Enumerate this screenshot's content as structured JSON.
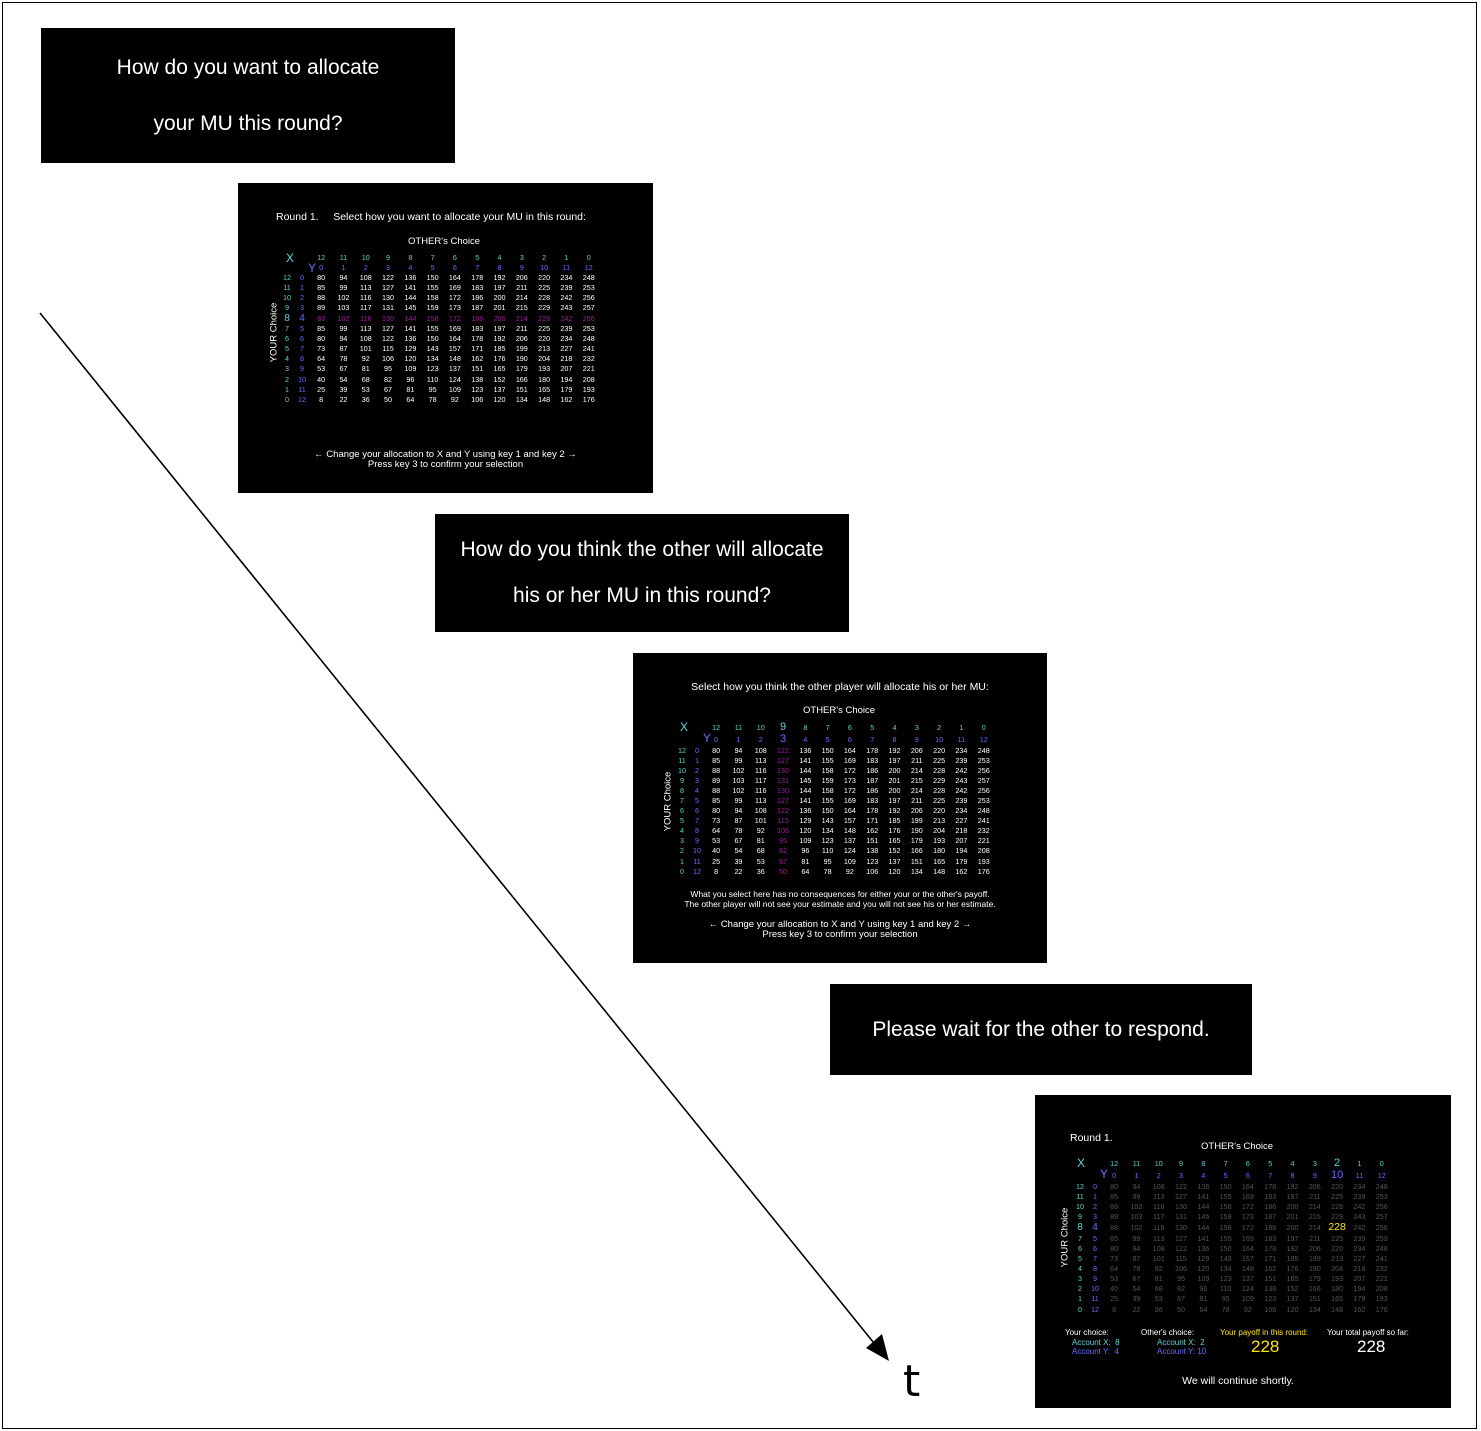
{
  "prompt1": {
    "line1": "How do you want to allocate",
    "line2": "your MU this round?"
  },
  "prompt2": {
    "line1": "How do you think the other will allocate",
    "line2": "his or her MU in this round?"
  },
  "prompt3": {
    "text": "Please wait for the other to respond."
  },
  "time_label": "t",
  "colors": {
    "panel": "#000000",
    "x_header": "#5fd3d3",
    "y_header": "#6a6cff",
    "highlight": "#9b1f9b",
    "payoff": "#ffe600",
    "dim": "#555555"
  },
  "matrix": {
    "other_x": [
      "12",
      "11",
      "10",
      "9",
      "8",
      "7",
      "6",
      "5",
      "4",
      "3",
      "2",
      "1",
      "0"
    ],
    "other_y": [
      "0",
      "1",
      "2",
      "3",
      "4",
      "5",
      "6",
      "7",
      "8",
      "9",
      "10",
      "11",
      "12"
    ],
    "your_x": [
      "12",
      "11",
      "10",
      "9",
      "8",
      "7",
      "6",
      "5",
      "4",
      "3",
      "2",
      "1",
      "0"
    ],
    "your_y": [
      "0",
      "1",
      "2",
      "3",
      "4",
      "5",
      "6",
      "7",
      "8",
      "9",
      "10",
      "11",
      "12"
    ],
    "rows": [
      [
        "80",
        "94",
        "108",
        "122",
        "136",
        "150",
        "164",
        "178",
        "192",
        "206",
        "220",
        "234",
        "248"
      ],
      [
        "85",
        "99",
        "113",
        "127",
        "141",
        "155",
        "169",
        "183",
        "197",
        "211",
        "225",
        "239",
        "253"
      ],
      [
        "88",
        "102",
        "116",
        "130",
        "144",
        "158",
        "172",
        "186",
        "200",
        "214",
        "228",
        "242",
        "256"
      ],
      [
        "89",
        "103",
        "117",
        "131",
        "145",
        "159",
        "173",
        "187",
        "201",
        "215",
        "229",
        "243",
        "257"
      ],
      [
        "88",
        "102",
        "116",
        "130",
        "144",
        "158",
        "172",
        "186",
        "200",
        "214",
        "228",
        "242",
        "256"
      ],
      [
        "85",
        "99",
        "113",
        "127",
        "141",
        "155",
        "169",
        "183",
        "197",
        "211",
        "225",
        "239",
        "253"
      ],
      [
        "80",
        "94",
        "108",
        "122",
        "136",
        "150",
        "164",
        "178",
        "192",
        "206",
        "220",
        "234",
        "248"
      ],
      [
        "73",
        "87",
        "101",
        "115",
        "129",
        "143",
        "157",
        "171",
        "185",
        "199",
        "213",
        "227",
        "241"
      ],
      [
        "64",
        "78",
        "92",
        "106",
        "120",
        "134",
        "148",
        "162",
        "176",
        "190",
        "204",
        "218",
        "232"
      ],
      [
        "53",
        "67",
        "81",
        "95",
        "109",
        "123",
        "137",
        "151",
        "165",
        "179",
        "193",
        "207",
        "221"
      ],
      [
        "40",
        "54",
        "68",
        "82",
        "96",
        "110",
        "124",
        "138",
        "152",
        "166",
        "180",
        "194",
        "208"
      ],
      [
        "25",
        "39",
        "53",
        "67",
        "81",
        "95",
        "109",
        "123",
        "137",
        "151",
        "165",
        "179",
        "193"
      ],
      [
        "8",
        "22",
        "36",
        "50",
        "64",
        "78",
        "92",
        "106",
        "120",
        "134",
        "148",
        "162",
        "176"
      ]
    ]
  },
  "screen1": {
    "title": "Round 1.     Select how you want to allocate your MU in this round:",
    "other_label": "OTHER's Choice",
    "your_label": "YOUR Choice",
    "x": "X",
    "y": "Y",
    "footer1": "← Change your allocation to X and Y using key 1 and key 2 →",
    "footer2": "Press key 3 to confirm your selection",
    "highlight_row": 4
  },
  "screen2": {
    "title": "Select how you think the other player will allocate his or her MU:",
    "other_label": "OTHER's Choice",
    "your_label": "YOUR Choice",
    "x": "X",
    "y": "Y",
    "note1": "What you select here has no consequences for either your or the other's payoff.",
    "note2": "The other player will not see your estimate and you will not see his or her estimate.",
    "footer1": "← Change your allocation to X and Y using key 1 and key 2 →",
    "footer2": "Press key 3 to confirm your selection",
    "highlight_col": 3
  },
  "screen3": {
    "title": "Round 1.",
    "other_label": "OTHER's Choice",
    "your_label": "YOUR Choice",
    "x": "X",
    "y": "Y",
    "selected_row": 4,
    "selected_col": 10,
    "your_choice_label": "Your choice:",
    "your_account_x": "Account X:  8",
    "your_account_y": "Account Y:  4",
    "other_choice_label": "Other's choice:",
    "other_account_x": "Account X:  2",
    "other_account_y": "Account Y: 10",
    "payoff_round_label": "Your payoff in this round:",
    "payoff_round_value": "228",
    "payoff_total_label": "Your total payoff so far:",
    "payoff_total_value": "228",
    "continue_text": "We will continue shortly."
  }
}
